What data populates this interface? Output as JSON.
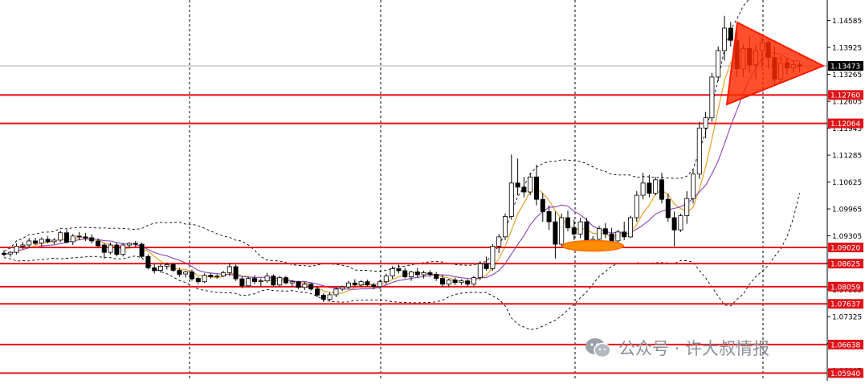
{
  "chart_data": {
    "type": "candlestick",
    "price_axis_ticks": [
      "1.14585",
      "1.13925",
      "1.13265",
      "1.12605",
      "1.11945",
      "1.11285",
      "1.10625",
      "1.09965",
      "1.09305",
      "1.08645",
      "1.07985",
      "1.07325",
      "1.06665",
      "1.06005"
    ],
    "ylim": [
      1.0575,
      1.1509
    ],
    "current_price": "1.13473",
    "horizontal_levels": [
      "1.12760",
      "1.12064",
      "1.09020",
      "1.08625",
      "1.08059",
      "1.07637",
      "1.06638",
      "1.05940"
    ],
    "vertical_dividers": [
      "period-1",
      "period-2",
      "period-3",
      "period-4",
      "period-5"
    ],
    "indicators": [
      "fast moving average (orange)",
      "slow moving average (purple)",
      "bollinger bands (dashed)"
    ],
    "annotations": [
      "symmetrical triangle (red)",
      "double bottom ellipse (orange)"
    ],
    "colors": {
      "level_line": "#e8141a",
      "triangle": "#ff2a00",
      "ellipse": "#ff8c00",
      "ma_fast": "#e89a1a",
      "ma_slow": "#8a44b8",
      "bands": "#000000",
      "label_bg": "#e0141a",
      "current_bg": "#000000"
    },
    "candles": [
      [
        1.0888,
        1.0895,
        1.088,
        1.0885
      ],
      [
        1.0886,
        1.0893,
        1.0879,
        1.089
      ],
      [
        1.089,
        1.0912,
        1.0885,
        1.0905
      ],
      [
        1.0905,
        1.0915,
        1.0898,
        1.0908
      ],
      [
        1.0908,
        1.0925,
        1.09,
        1.0918
      ],
      [
        1.0918,
        1.0926,
        1.0908,
        1.0912
      ],
      [
        1.0913,
        1.0927,
        1.0905,
        1.0922
      ],
      [
        1.0922,
        1.093,
        1.0912,
        1.0916
      ],
      [
        1.0916,
        1.0925,
        1.091,
        1.092
      ],
      [
        1.092,
        1.0943,
        1.0915,
        1.0938
      ],
      [
        1.0938,
        1.0946,
        1.0912,
        1.0915
      ],
      [
        1.0916,
        1.0935,
        1.0908,
        1.093
      ],
      [
        1.093,
        1.094,
        1.092,
        1.0928
      ],
      [
        1.0928,
        1.0938,
        1.0918,
        1.0925
      ],
      [
        1.0926,
        1.0934,
        1.0912,
        1.0918
      ],
      [
        1.0918,
        1.0924,
        1.0902,
        1.0906
      ],
      [
        1.0908,
        1.0913,
        1.0875,
        1.089
      ],
      [
        1.089,
        1.0914,
        1.0885,
        1.0908
      ],
      [
        1.0908,
        1.0913,
        1.088,
        1.0885
      ],
      [
        1.0885,
        1.0913,
        1.088,
        1.0908
      ],
      [
        1.0908,
        1.0915,
        1.09,
        1.0912
      ],
      [
        1.0912,
        1.0918,
        1.0904,
        1.091
      ],
      [
        1.091,
        1.0914,
        1.0876,
        1.088
      ],
      [
        1.088,
        1.0885,
        1.0848,
        1.0852
      ],
      [
        1.0852,
        1.0862,
        1.0838,
        1.0845
      ],
      [
        1.0846,
        1.0862,
        1.084,
        1.0856
      ],
      [
        1.0856,
        1.0865,
        1.0848,
        1.086
      ],
      [
        1.086,
        1.0864,
        1.0842,
        1.0846
      ],
      [
        1.0846,
        1.0852,
        1.083,
        1.0836
      ],
      [
        1.0837,
        1.0845,
        1.0828,
        1.0842
      ],
      [
        1.0842,
        1.0848,
        1.082,
        1.0825
      ],
      [
        1.0826,
        1.083,
        1.0812,
        1.0818
      ],
      [
        1.0818,
        1.0838,
        1.0815,
        1.0834
      ],
      [
        1.0834,
        1.084,
        1.0826,
        1.083
      ],
      [
        1.083,
        1.0836,
        1.0825,
        1.0832
      ],
      [
        1.0832,
        1.0845,
        1.083,
        1.084
      ],
      [
        1.084,
        1.0864,
        1.0832,
        1.0855
      ],
      [
        1.0855,
        1.086,
        1.082,
        1.0825
      ],
      [
        1.0825,
        1.083,
        1.0802,
        1.0808
      ],
      [
        1.0808,
        1.083,
        1.0805,
        1.0826
      ],
      [
        1.0826,
        1.0834,
        1.0812,
        1.0818
      ],
      [
        1.0818,
        1.0826,
        1.0806,
        1.082
      ],
      [
        1.082,
        1.084,
        1.0815,
        1.0832
      ],
      [
        1.0832,
        1.0836,
        1.0805,
        1.081
      ],
      [
        1.081,
        1.0832,
        1.0806,
        1.0828
      ],
      [
        1.0828,
        1.0832,
        1.0812,
        1.0815
      ],
      [
        1.0815,
        1.0822,
        1.0805,
        1.0818
      ],
      [
        1.0818,
        1.082,
        1.08,
        1.0804
      ],
      [
        1.0804,
        1.0818,
        1.0798,
        1.0812
      ],
      [
        1.0812,
        1.0815,
        1.0796,
        1.08
      ],
      [
        1.08,
        1.0806,
        1.078,
        1.0785
      ],
      [
        1.0785,
        1.079,
        1.0768,
        1.0775
      ],
      [
        1.0775,
        1.0792,
        1.077,
        1.0786
      ],
      [
        1.0786,
        1.0804,
        1.078,
        1.08
      ],
      [
        1.08,
        1.0808,
        1.0795,
        1.0805
      ],
      [
        1.0805,
        1.082,
        1.08,
        1.0815
      ],
      [
        1.0815,
        1.0824,
        1.0806,
        1.081
      ],
      [
        1.081,
        1.0822,
        1.0805,
        1.0818
      ],
      [
        1.0818,
        1.0823,
        1.0806,
        1.081
      ],
      [
        1.081,
        1.0815,
        1.08,
        1.0806
      ],
      [
        1.0806,
        1.0822,
        1.08,
        1.0818
      ],
      [
        1.0818,
        1.0838,
        1.0812,
        1.0832
      ],
      [
        1.0832,
        1.0856,
        1.0825,
        1.085
      ],
      [
        1.085,
        1.086,
        1.0838,
        1.0845
      ],
      [
        1.0845,
        1.0852,
        1.0826,
        1.083
      ],
      [
        1.083,
        1.0845,
        1.082,
        1.0842
      ],
      [
        1.0842,
        1.0852,
        1.0828,
        1.0835
      ],
      [
        1.0835,
        1.0845,
        1.0826,
        1.084
      ],
      [
        1.084,
        1.0846,
        1.083,
        1.0836
      ],
      [
        1.0836,
        1.0842,
        1.082,
        1.0826
      ],
      [
        1.0826,
        1.0835,
        1.0805,
        1.0812
      ],
      [
        1.0812,
        1.0825,
        1.0806,
        1.0822
      ],
      [
        1.0822,
        1.0828,
        1.081,
        1.0816
      ],
      [
        1.0816,
        1.0824,
        1.081,
        1.082
      ],
      [
        1.082,
        1.0824,
        1.0806,
        1.0812
      ],
      [
        1.0812,
        1.0832,
        1.0808,
        1.0828
      ],
      [
        1.0828,
        1.0868,
        1.0822,
        1.0862
      ],
      [
        1.0862,
        1.088,
        1.0845,
        1.085
      ],
      [
        1.085,
        1.091,
        1.0845,
        1.0905
      ],
      [
        1.0905,
        1.0935,
        1.0888,
        1.0928
      ],
      [
        1.0928,
        1.0985,
        1.092,
        1.0978
      ],
      [
        1.0978,
        1.113,
        1.097,
        1.106
      ],
      [
        1.106,
        1.112,
        1.103,
        1.105
      ],
      [
        1.105,
        1.1075,
        1.1025,
        1.1038
      ],
      [
        1.1038,
        1.1085,
        1.103,
        1.1075
      ],
      [
        1.1075,
        1.1105,
        1.1005,
        1.102
      ],
      [
        1.102,
        1.1035,
        1.0965,
        1.099
      ],
      [
        1.099,
        1.1005,
        1.0945,
        1.0965
      ],
      [
        1.0965,
        1.099,
        1.0875,
        1.091
      ],
      [
        1.091,
        1.0985,
        1.0905,
        1.0975
      ],
      [
        1.0975,
        1.0992,
        1.0942,
        1.095
      ],
      [
        1.095,
        1.097,
        1.092,
        1.0935
      ],
      [
        1.0935,
        1.0975,
        1.0925,
        1.0965
      ],
      [
        1.0965,
        1.0975,
        1.09,
        1.0912
      ],
      [
        1.0912,
        1.093,
        1.0895,
        1.0922
      ],
      [
        1.0922,
        1.0955,
        1.0915,
        1.0948
      ],
      [
        1.0948,
        1.0962,
        1.0925,
        1.0935
      ],
      [
        1.0935,
        1.095,
        1.0912,
        1.0918
      ],
      [
        1.0918,
        1.0945,
        1.091,
        1.094
      ],
      [
        1.094,
        1.0965,
        1.092,
        1.0928
      ],
      [
        1.0928,
        1.098,
        1.0925,
        1.0975
      ],
      [
        1.0975,
        1.104,
        1.0965,
        1.103
      ],
      [
        1.103,
        1.1085,
        1.102,
        1.106
      ],
      [
        1.106,
        1.108,
        1.1025,
        1.1035
      ],
      [
        1.1035,
        1.1075,
        1.103,
        1.1068
      ],
      [
        1.1068,
        1.1085,
        1.101,
        1.102
      ],
      [
        1.102,
        1.1035,
        1.0965,
        1.0975
      ],
      [
        1.0975,
        1.099,
        1.0905,
        1.0945
      ],
      [
        1.0945,
        1.0985,
        1.094,
        1.098
      ],
      [
        1.098,
        1.104,
        1.096,
        1.1022
      ],
      [
        1.1022,
        1.1095,
        1.101,
        1.1082
      ],
      [
        1.1082,
        1.121,
        1.107,
        1.1195
      ],
      [
        1.1195,
        1.1235,
        1.117,
        1.122
      ],
      [
        1.122,
        1.133,
        1.121,
        1.132
      ],
      [
        1.132,
        1.1395,
        1.131,
        1.1385
      ],
      [
        1.1385,
        1.147,
        1.136,
        1.144
      ],
      [
        1.144,
        1.1455,
        1.1395,
        1.141
      ],
      [
        1.141,
        1.143,
        1.132,
        1.134
      ],
      [
        1.134,
        1.14,
        1.132,
        1.139
      ],
      [
        1.139,
        1.142,
        1.133,
        1.135
      ],
      [
        1.135,
        1.14,
        1.1315,
        1.1385
      ],
      [
        1.1385,
        1.142,
        1.1345,
        1.1405
      ],
      [
        1.1405,
        1.141,
        1.134,
        1.1368
      ],
      [
        1.1368,
        1.1395,
        1.13,
        1.1315
      ],
      [
        1.1315,
        1.1372,
        1.1305,
        1.1355
      ],
      [
        1.1355,
        1.1368,
        1.1325,
        1.1342
      ],
      [
        1.1342,
        1.136,
        1.133,
        1.135
      ],
      [
        1.135,
        1.1358,
        1.1332,
        1.1347
      ]
    ]
  },
  "watermark": {
    "text": "公众号 · 许大叔情报",
    "icon": "wechat-icon"
  }
}
